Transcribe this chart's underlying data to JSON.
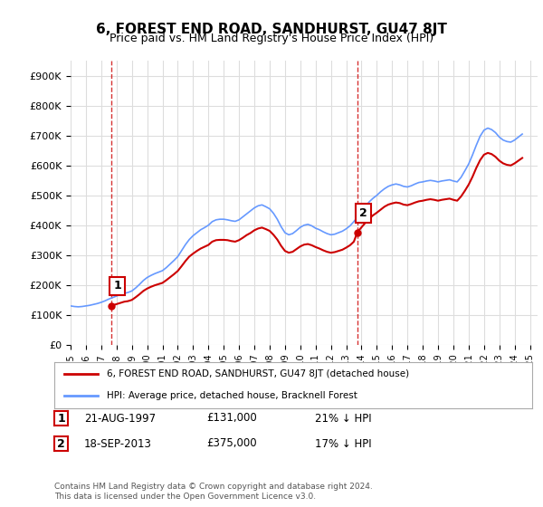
{
  "title": "6, FOREST END ROAD, SANDHURST, GU47 8JT",
  "subtitle": "Price paid vs. HM Land Registry's House Price Index (HPI)",
  "ylabel_ticks": [
    "£0",
    "£100K",
    "£200K",
    "£300K",
    "£400K",
    "£500K",
    "£600K",
    "£700K",
    "£800K",
    "£900K"
  ],
  "ytick_values": [
    0,
    100000,
    200000,
    300000,
    400000,
    500000,
    600000,
    700000,
    800000,
    900000
  ],
  "ylim": [
    0,
    950000
  ],
  "xlim_start": 1995.0,
  "xlim_end": 2025.5,
  "sale1": {
    "date_num": 1997.64,
    "price": 131000,
    "label": "1"
  },
  "sale2": {
    "date_num": 2013.72,
    "price": 375000,
    "label": "2"
  },
  "vline1_color": "#cc0000",
  "vline2_color": "#cc0000",
  "sale_color": "#cc0000",
  "hpi_color": "#6699ff",
  "legend_sale_label": "6, FOREST END ROAD, SANDHURST, GU47 8JT (detached house)",
  "legend_hpi_label": "HPI: Average price, detached house, Bracknell Forest",
  "table_data": [
    {
      "num": "1",
      "date": "21-AUG-1997",
      "price": "£131,000",
      "hpi": "21% ↓ HPI"
    },
    {
      "num": "2",
      "date": "18-SEP-2013",
      "price": "£375,000",
      "hpi": "17% ↓ HPI"
    }
  ],
  "footnote": "Contains HM Land Registry data © Crown copyright and database right 2024.\nThis data is licensed under the Open Government Licence v3.0.",
  "background_color": "#ffffff",
  "grid_color": "#dddddd",
  "label_box_color": "#cc0000",
  "hpi_data": {
    "years": [
      1995.0,
      1995.25,
      1995.5,
      1995.75,
      1996.0,
      1996.25,
      1996.5,
      1996.75,
      1997.0,
      1997.25,
      1997.5,
      1997.75,
      1998.0,
      1998.25,
      1998.5,
      1998.75,
      1999.0,
      1999.25,
      1999.5,
      1999.75,
      2000.0,
      2000.25,
      2000.5,
      2000.75,
      2001.0,
      2001.25,
      2001.5,
      2001.75,
      2002.0,
      2002.25,
      2002.5,
      2002.75,
      2003.0,
      2003.25,
      2003.5,
      2003.75,
      2004.0,
      2004.25,
      2004.5,
      2004.75,
      2005.0,
      2005.25,
      2005.5,
      2005.75,
      2006.0,
      2006.25,
      2006.5,
      2006.75,
      2007.0,
      2007.25,
      2007.5,
      2007.75,
      2008.0,
      2008.25,
      2008.5,
      2008.75,
      2009.0,
      2009.25,
      2009.5,
      2009.75,
      2010.0,
      2010.25,
      2010.5,
      2010.75,
      2011.0,
      2011.25,
      2011.5,
      2011.75,
      2012.0,
      2012.25,
      2012.5,
      2012.75,
      2013.0,
      2013.25,
      2013.5,
      2013.75,
      2014.0,
      2014.25,
      2014.5,
      2014.75,
      2015.0,
      2015.25,
      2015.5,
      2015.75,
      2016.0,
      2016.25,
      2016.5,
      2016.75,
      2017.0,
      2017.25,
      2017.5,
      2017.75,
      2018.0,
      2018.25,
      2018.5,
      2018.75,
      2019.0,
      2019.25,
      2019.5,
      2019.75,
      2020.0,
      2020.25,
      2020.5,
      2020.75,
      2021.0,
      2021.25,
      2021.5,
      2021.75,
      2022.0,
      2022.25,
      2022.5,
      2022.75,
      2023.0,
      2023.25,
      2023.5,
      2023.75,
      2024.0,
      2024.25,
      2024.5
    ],
    "values": [
      130000,
      128000,
      127000,
      128000,
      130000,
      132000,
      135000,
      138000,
      142000,
      147000,
      153000,
      158000,
      163000,
      168000,
      172000,
      175000,
      180000,
      190000,
      202000,
      215000,
      225000,
      232000,
      238000,
      243000,
      248000,
      258000,
      270000,
      282000,
      295000,
      315000,
      335000,
      352000,
      365000,
      375000,
      385000,
      392000,
      400000,
      412000,
      418000,
      420000,
      420000,
      418000,
      415000,
      413000,
      418000,
      428000,
      438000,
      448000,
      458000,
      465000,
      468000,
      462000,
      455000,
      440000,
      420000,
      395000,
      375000,
      368000,
      372000,
      382000,
      393000,
      400000,
      403000,
      398000,
      390000,
      385000,
      378000,
      372000,
      368000,
      370000,
      375000,
      380000,
      388000,
      398000,
      412000,
      428000,
      445000,
      462000,
      478000,
      490000,
      500000,
      512000,
      522000,
      530000,
      535000,
      538000,
      535000,
      530000,
      528000,
      532000,
      538000,
      543000,
      545000,
      548000,
      550000,
      548000,
      545000,
      548000,
      550000,
      552000,
      548000,
      545000,
      560000,
      582000,
      605000,
      635000,
      668000,
      698000,
      718000,
      725000,
      720000,
      710000,
      695000,
      685000,
      680000,
      678000,
      685000,
      695000,
      705000
    ]
  },
  "sale_hpi_data": {
    "years": [
      1997.64,
      1997.75,
      1998.0,
      1998.25,
      1998.5,
      1998.75,
      1999.0,
      1999.25,
      1999.5,
      1999.75,
      2000.0,
      2000.25,
      2000.5,
      2000.75,
      2001.0,
      2001.25,
      2001.5,
      2001.75,
      2002.0,
      2002.25,
      2002.5,
      2002.75,
      2003.0,
      2003.25,
      2003.5,
      2003.75,
      2004.0,
      2004.25,
      2004.5,
      2004.75,
      2005.0,
      2005.25,
      2005.5,
      2005.75,
      2006.0,
      2006.25,
      2006.5,
      2006.75,
      2007.0,
      2007.25,
      2007.5,
      2007.75,
      2008.0,
      2008.25,
      2008.5,
      2008.75,
      2009.0,
      2009.25,
      2009.5,
      2009.75,
      2010.0,
      2010.25,
      2010.5,
      2010.75,
      2011.0,
      2011.25,
      2011.5,
      2011.75,
      2012.0,
      2012.25,
      2012.5,
      2012.75,
      2013.0,
      2013.25,
      2013.5,
      2013.72,
      2013.72,
      2013.75,
      2014.0,
      2014.25,
      2014.5,
      2014.75,
      2015.0,
      2015.25,
      2015.5,
      2015.75,
      2016.0,
      2016.25,
      2016.5,
      2016.75,
      2017.0,
      2017.25,
      2017.5,
      2017.75,
      2018.0,
      2018.25,
      2018.5,
      2018.75,
      2019.0,
      2019.25,
      2019.5,
      2019.75,
      2020.0,
      2020.25,
      2020.5,
      2020.75,
      2021.0,
      2021.25,
      2021.5,
      2021.75,
      2022.0,
      2022.25,
      2022.5,
      2022.75,
      2023.0,
      2023.25,
      2023.5,
      2023.75,
      2024.0,
      2024.25,
      2024.5
    ],
    "values": [
      131000,
      132000,
      136000,
      140000,
      144000,
      146000,
      150000,
      159000,
      169000,
      180000,
      188000,
      194000,
      199000,
      203000,
      207000,
      216000,
      226000,
      236000,
      247000,
      263000,
      280000,
      295000,
      305000,
      314000,
      322000,
      328000,
      334000,
      345000,
      350000,
      351000,
      351000,
      350000,
      347000,
      345000,
      350000,
      358000,
      367000,
      374000,
      383000,
      389000,
      392000,
      387000,
      381000,
      368000,
      352000,
      331000,
      314000,
      308000,
      311000,
      320000,
      329000,
      335000,
      337000,
      333000,
      327000,
      322000,
      316000,
      311000,
      308000,
      310000,
      314000,
      318000,
      325000,
      333000,
      345000,
      375000,
      375000,
      378000,
      393000,
      408000,
      422000,
      433000,
      442000,
      452000,
      462000,
      469000,
      473000,
      476000,
      474000,
      469000,
      467000,
      471000,
      476000,
      480000,
      482000,
      485000,
      487000,
      485000,
      482000,
      485000,
      487000,
      489000,
      485000,
      482000,
      496000,
      515000,
      536000,
      562000,
      592000,
      618000,
      636000,
      642000,
      638000,
      629000,
      616000,
      607000,
      602000,
      600000,
      607000,
      616000,
      625000
    ]
  }
}
